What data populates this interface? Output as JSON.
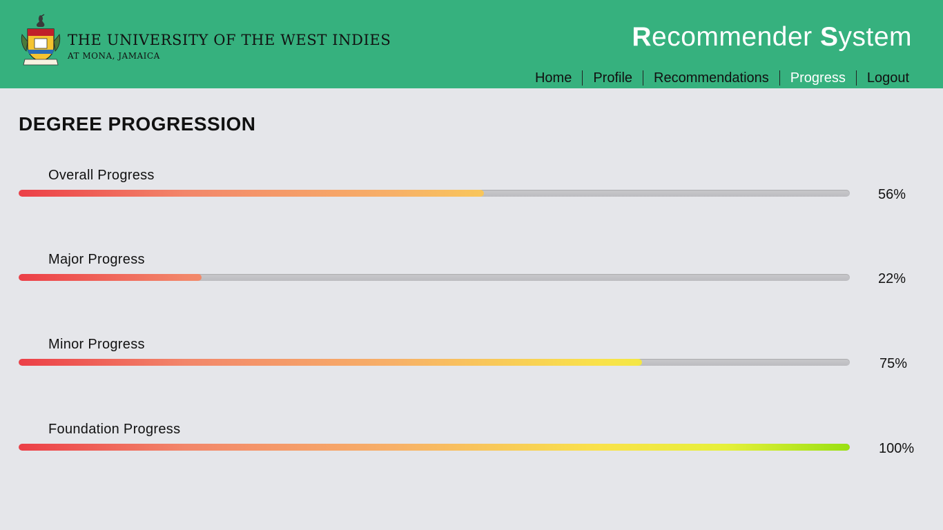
{
  "header": {
    "university_name": "THE UNIVERSITY OF THE WEST INDIES",
    "university_sub": "AT MONA, JAMAICA",
    "app_title_first_initial": "R",
    "app_title_first_rest": "ecommender ",
    "app_title_second_initial": "S",
    "app_title_second_rest": "ystem"
  },
  "nav": {
    "items": [
      "Home",
      "Profile",
      "Recommendations",
      "Progress",
      "Logout"
    ],
    "active": "Progress"
  },
  "page": {
    "title": "DEGREE PROGRESSION"
  },
  "progress": [
    {
      "label": "Overall Progress",
      "value": 56,
      "display": "56%"
    },
    {
      "label": "Major Progress",
      "value": 22,
      "display": "22%"
    },
    {
      "label": "Minor Progress",
      "value": 75,
      "display": "75%"
    },
    {
      "label": "Foundation Progress",
      "value": 100,
      "display": "100%"
    }
  ],
  "colors": {
    "header_bg": "#36b17e",
    "page_bg": "#e5e6ea",
    "active_nav": "#ffffff"
  }
}
